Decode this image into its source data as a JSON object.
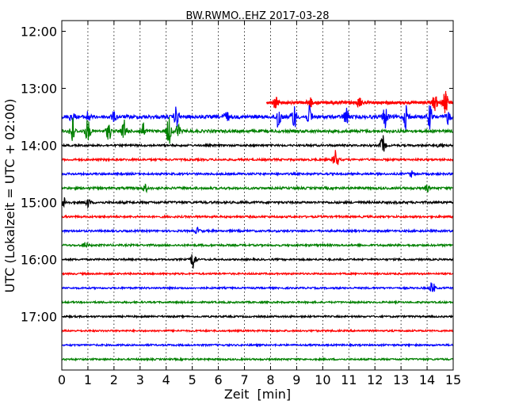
{
  "chart_data": {
    "type": "line",
    "title": "BW.RWMO..EHZ 2017-03-28",
    "xlabel": "Zeit  [min]",
    "ylabel": "UTC (Lokalzeit = UTC + 02:00)",
    "xlim": [
      0,
      15
    ],
    "x_ticks": [
      "0",
      "1",
      "2",
      "3",
      "4",
      "5",
      "6",
      "7",
      "8",
      "9",
      "10",
      "11",
      "12",
      "13",
      "14",
      "15"
    ],
    "y_ticks": [
      "12:00",
      "13:00",
      "14:00",
      "15:00",
      "16:00",
      "17:00"
    ],
    "grid": "vertical-dotted",
    "traces": [
      {
        "start": "13:15",
        "color": "#ff0000",
        "x_start": 7.85,
        "noise": 0.1,
        "bursts": [
          {
            "x": 8.2,
            "amp": 0.45
          },
          {
            "x": 9.5,
            "amp": 0.35
          },
          {
            "x": 11.4,
            "amp": 0.3
          },
          {
            "x": 14.3,
            "amp": 0.55
          },
          {
            "x": 14.7,
            "amp": 0.8
          }
        ]
      },
      {
        "start": "13:30",
        "color": "#0000ff",
        "x_start": 0.0,
        "noise": 0.12,
        "bursts": [
          {
            "x": 0.4,
            "amp": 0.45
          },
          {
            "x": 1.0,
            "amp": 0.35
          },
          {
            "x": 2.0,
            "amp": 0.3
          },
          {
            "x": 4.4,
            "amp": 0.7
          },
          {
            "x": 6.3,
            "amp": 0.4
          },
          {
            "x": 8.3,
            "amp": 0.9
          },
          {
            "x": 8.9,
            "amp": 0.85
          },
          {
            "x": 9.5,
            "amp": 0.7
          },
          {
            "x": 10.9,
            "amp": 0.6
          },
          {
            "x": 12.4,
            "amp": 0.75
          },
          {
            "x": 13.2,
            "amp": 0.9
          },
          {
            "x": 14.1,
            "amp": 0.8
          },
          {
            "x": 14.8,
            "amp": 0.45
          }
        ]
      },
      {
        "start": "13:45",
        "color": "#008000",
        "x_start": 0.0,
        "noise": 0.1,
        "bursts": [
          {
            "x": 0.4,
            "amp": 0.95
          },
          {
            "x": 1.0,
            "amp": 0.8
          },
          {
            "x": 1.8,
            "amp": 0.6
          },
          {
            "x": 2.4,
            "amp": 0.75
          },
          {
            "x": 3.1,
            "amp": 0.6
          },
          {
            "x": 4.1,
            "amp": 0.95
          },
          {
            "x": 4.45,
            "amp": 0.5
          }
        ]
      },
      {
        "start": "14:00",
        "color": "#000000",
        "x_start": 0.0,
        "noise": 0.07,
        "bursts": [
          {
            "x": 12.3,
            "amp": 0.7
          },
          {
            "x": 14.5,
            "amp": 0.2
          }
        ]
      },
      {
        "start": "14:15",
        "color": "#ff0000",
        "x_start": 0.0,
        "noise": 0.07,
        "bursts": [
          {
            "x": 10.5,
            "amp": 0.75
          }
        ]
      },
      {
        "start": "14:30",
        "color": "#0000ff",
        "x_start": 0.0,
        "noise": 0.07,
        "bursts": [
          {
            "x": 13.4,
            "amp": 0.2
          }
        ]
      },
      {
        "start": "14:45",
        "color": "#008000",
        "x_start": 0.0,
        "noise": 0.08,
        "bursts": [
          {
            "x": 3.2,
            "amp": 0.25
          },
          {
            "x": 14.0,
            "amp": 0.2
          }
        ]
      },
      {
        "start": "15:00",
        "color": "#000000",
        "x_start": 0.0,
        "noise": 0.08,
        "bursts": [
          {
            "x": 0.1,
            "amp": 0.35
          },
          {
            "x": 1.0,
            "amp": 0.3
          }
        ]
      },
      {
        "start": "15:15",
        "color": "#ff0000",
        "x_start": 0.0,
        "noise": 0.07,
        "bursts": []
      },
      {
        "start": "15:30",
        "color": "#0000ff",
        "x_start": 0.0,
        "noise": 0.07,
        "bursts": [
          {
            "x": 5.2,
            "amp": 0.2
          }
        ]
      },
      {
        "start": "15:45",
        "color": "#008000",
        "x_start": 0.0,
        "noise": 0.07,
        "bursts": [
          {
            "x": 0.9,
            "amp": 0.2
          }
        ]
      },
      {
        "start": "16:00",
        "color": "#000000",
        "x_start": 0.0,
        "noise": 0.06,
        "bursts": [
          {
            "x": 5.05,
            "amp": 0.75
          }
        ]
      },
      {
        "start": "16:15",
        "color": "#ff0000",
        "x_start": 0.0,
        "noise": 0.06,
        "bursts": []
      },
      {
        "start": "16:30",
        "color": "#0000ff",
        "x_start": 0.0,
        "noise": 0.06,
        "bursts": [
          {
            "x": 14.2,
            "amp": 0.5
          }
        ]
      },
      {
        "start": "16:45",
        "color": "#008000",
        "x_start": 0.0,
        "noise": 0.06,
        "bursts": []
      },
      {
        "start": "17:00",
        "color": "#000000",
        "x_start": 0.0,
        "noise": 0.06,
        "bursts": []
      },
      {
        "start": "17:15",
        "color": "#ff0000",
        "x_start": 0.0,
        "noise": 0.06,
        "bursts": []
      },
      {
        "start": "17:30",
        "color": "#0000ff",
        "x_start": 0.0,
        "noise": 0.06,
        "bursts": []
      },
      {
        "start": "17:45",
        "color": "#008000",
        "x_start": 0.0,
        "noise": 0.06,
        "bursts": []
      }
    ]
  }
}
